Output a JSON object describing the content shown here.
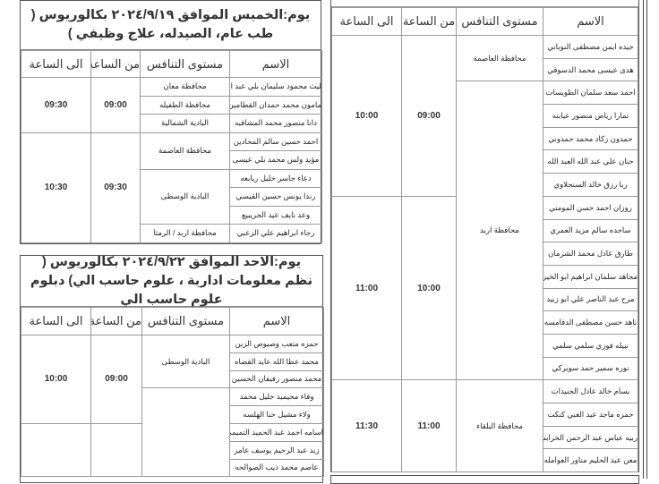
{
  "headers": {
    "name": "الاسم",
    "level": "مستوى التنافس",
    "from": "من الساعة",
    "to": "الى الساعة"
  },
  "tables": [
    {
      "title": "يوم:الخميس    الموافق ٢٠٢٤/٩/١٩ بكالوريوس ( طب عام، الصيدله، علاج وظيفي )",
      "names": [
        "ليث محمود سليمان بلي عبد الرحمن",
        "مامون محمد حمدان القطامين",
        "دانا منصور محمد المشاقبه",
        "احمد حسين سالم المحادين",
        "مؤيد ولس محمد بلي عيسى",
        "دعاء جاسر خليل ربابعه",
        "رندا يونس حسين القيسي",
        "وعد نايف عيد الجريبيع",
        "رجاء ابراهيم علي الزعبي"
      ],
      "levels": [
        {
          "label": "محافظة معان",
          "span": 1
        },
        {
          "label": "محافظة الطفيله",
          "span": 1
        },
        {
          "label": "البادية الشمالية",
          "span": 1
        },
        {
          "label": "محافظة العاصمة",
          "span": 2
        },
        {
          "label": "البادية الوسطى",
          "span": 3
        },
        {
          "label": "محافظة اربد / الرمثا",
          "span": 1
        }
      ],
      "times": [
        {
          "from": "09:00",
          "to": "09:30",
          "span": 3
        },
        {
          "from": "09:30",
          "to": "10:30",
          "span": 6
        }
      ]
    },
    {
      "title": "يوم:الاحد    الموافق ٢٠٢٤/٩/٢٢ بكالوريوس ( نظم معلومات ادارية ، علوم حاسب الي) دبلوم علوم حاسب الي",
      "names": [
        "حمزه متعب وصيوص الزبن",
        "محمد عطا الله عايد القضاه",
        "محمد منصور رفيفان الحسين",
        "وفاء محيميد خليل محمد",
        "ولاء مشيل حنا الهلسه",
        "اسامه احمد عبد الحميد التميمي",
        "زيد عبد الرحيم يوسف عامر",
        "عاصم محمد ذيب الصوالحه"
      ],
      "levels": [
        {
          "label": "البادية الوسطى",
          "span": 3
        },
        {
          "label": "",
          "span": 5
        }
      ],
      "times": [
        {
          "from": "09:00",
          "to": "10:00",
          "span": 5
        },
        {
          "from": "",
          "to": "",
          "span": 3
        }
      ]
    },
    {
      "title": "",
      "names": [
        "جيده ايمن مصطفى النوباني",
        "هدى عيسى محمد الدسوقي",
        "احمد سعد سلمان الطويسات",
        "تمارا رياض منصور عبابنه",
        "حمدون ركاد محمد حمدوني",
        "حنان علي عبد الله العبد الله",
        "ربا رزق خالد السنجلاوي",
        "روزان احمد حسن المومني",
        "ساجده سالم مزيد العمري",
        "طارق عادل محمد الشرمان",
        "مجاهد سلمان ابراهيم ابو الخير",
        "مرح عبد الناصر علي ابو زبيد",
        "ناهد حسن مصطفى الدقامسه",
        "نبيله فوزي سلمي سلمي",
        "نوره سمير حمد سويركي",
        "بسام خالد عادل الجنيدات",
        "حمزه ماجد عبد الغني كنكت",
        "ربيه عباس عبد الرحمن الخرابشه",
        "معن عبد الحليم مناور العوامله"
      ],
      "levels": [
        {
          "label": "محافظة العاصمة",
          "span": 2
        },
        {
          "label": "محافظة اربد",
          "span": 13
        },
        {
          "label": "محافظة البلقاء",
          "span": 4
        }
      ],
      "times": [
        {
          "from": "09:00",
          "to": "10:00",
          "span": 7
        },
        {
          "from": "10:00",
          "to": "11:00",
          "span": 8
        },
        {
          "from": "11:00",
          "to": "11:30",
          "span": 4
        }
      ]
    }
  ]
}
